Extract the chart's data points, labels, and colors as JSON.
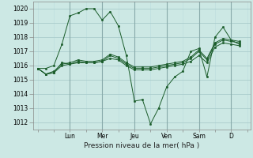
{
  "bg_color": "#cce8e4",
  "grid_color_major": "#aacccc",
  "grid_color_minor": "#bbdddd",
  "line_color": "#1a5c2a",
  "marker_color": "#1a5c2a",
  "xlabel": "Pression niveau de la mer( hPa )",
  "ylim": [
    1011.5,
    1020.5
  ],
  "yticks": [
    1012,
    1013,
    1014,
    1015,
    1016,
    1017,
    1018,
    1019,
    1020
  ],
  "day_labels": [
    "Lun",
    "Mer",
    "Jeu",
    "Ven",
    "Sam",
    "D"
  ],
  "day_positions": [
    2,
    4,
    6,
    8,
    10,
    12
  ],
  "xlim": [
    -0.3,
    13.2
  ],
  "series": [
    {
      "x": [
        0,
        0.5,
        1.0,
        1.5,
        2.0,
        2.5,
        3.0,
        3.5,
        4.0,
        4.5,
        5.0,
        5.5,
        6.0,
        6.5,
        7.0,
        7.5,
        8.0,
        8.5,
        9.0,
        9.5,
        10.0,
        10.5,
        11.0,
        11.5,
        12.0,
        12.5
      ],
      "y": [
        1015.8,
        1015.8,
        1016.0,
        1017.5,
        1019.5,
        1019.7,
        1020.0,
        1020.0,
        1019.2,
        1019.8,
        1018.8,
        1016.7,
        1013.5,
        1013.6,
        1011.9,
        1013.0,
        1014.5,
        1015.2,
        1015.6,
        1017.0,
        1017.2,
        1015.2,
        1018.0,
        1018.7,
        1017.8,
        1017.5
      ]
    },
    {
      "x": [
        0,
        0.5,
        1.0,
        1.5,
        2.0,
        2.5,
        3.0,
        3.5,
        4.0,
        4.5,
        5.0,
        5.5,
        6.0,
        6.5,
        7.0,
        7.5,
        8.0,
        8.5,
        9.0,
        9.5,
        10.0,
        10.5,
        11.0,
        11.5,
        12.0,
        12.5
      ],
      "y": [
        1015.8,
        1015.4,
        1015.5,
        1016.2,
        1016.1,
        1016.3,
        1016.2,
        1016.2,
        1016.3,
        1016.7,
        1016.5,
        1016.1,
        1015.8,
        1015.8,
        1015.8,
        1015.9,
        1016.0,
        1016.1,
        1016.2,
        1016.5,
        1017.0,
        1016.4,
        1017.5,
        1017.8,
        1017.7,
        1017.6
      ]
    },
    {
      "x": [
        0,
        0.5,
        1.0,
        1.5,
        2.0,
        2.5,
        3.0,
        3.5,
        4.0,
        4.5,
        5.0,
        5.5,
        6.0,
        6.5,
        7.0,
        7.5,
        8.0,
        8.5,
        9.0,
        9.5,
        10.0,
        10.5,
        11.0,
        11.5,
        12.0,
        12.5
      ],
      "y": [
        1015.8,
        1015.4,
        1015.5,
        1016.0,
        1016.1,
        1016.2,
        1016.2,
        1016.2,
        1016.3,
        1016.5,
        1016.4,
        1016.0,
        1015.7,
        1015.7,
        1015.7,
        1015.8,
        1015.9,
        1016.0,
        1016.1,
        1016.3,
        1016.7,
        1016.2,
        1017.3,
        1017.6,
        1017.5,
        1017.4
      ]
    },
    {
      "x": [
        0,
        0.5,
        1.0,
        1.5,
        2.0,
        2.5,
        3.0,
        3.5,
        4.0,
        4.5,
        5.0,
        5.5,
        6.0,
        6.5,
        7.0,
        7.5,
        8.0,
        8.5,
        9.0,
        9.5,
        10.0,
        10.5,
        11.0,
        11.5,
        12.0,
        12.5
      ],
      "y": [
        1015.8,
        1015.4,
        1015.6,
        1016.1,
        1016.2,
        1016.4,
        1016.3,
        1016.3,
        1016.4,
        1016.8,
        1016.6,
        1016.2,
        1015.9,
        1015.9,
        1015.9,
        1016.0,
        1016.1,
        1016.2,
        1016.3,
        1016.6,
        1017.1,
        1016.5,
        1017.6,
        1017.9,
        1017.8,
        1017.7
      ]
    }
  ]
}
